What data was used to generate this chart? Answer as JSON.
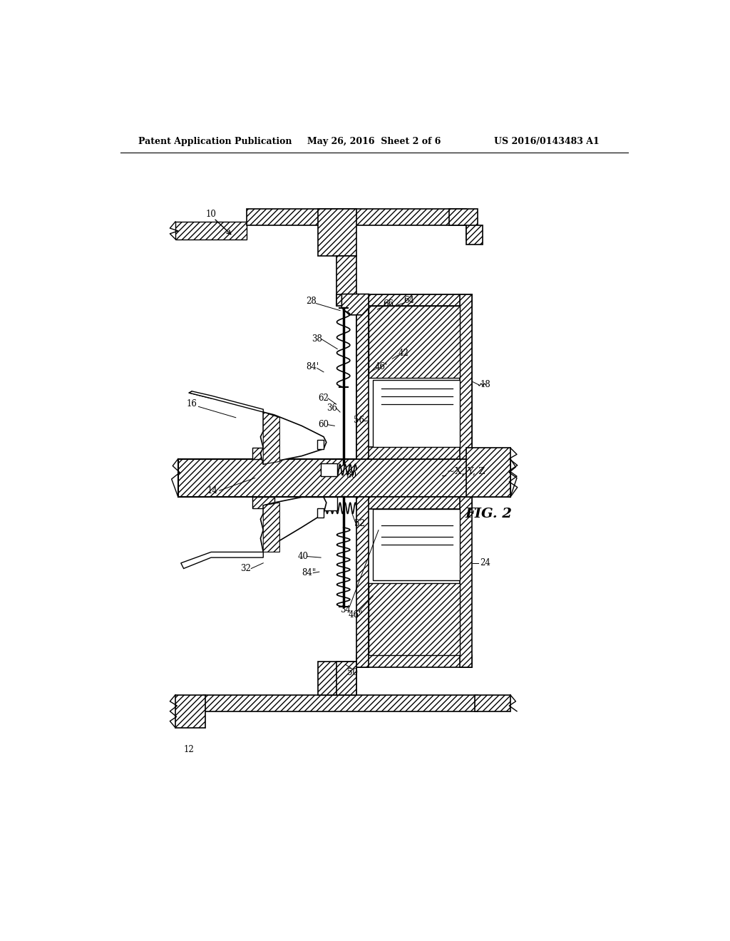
{
  "header_left": "Patent Application Publication",
  "header_center": "May 26, 2016  Sheet 2 of 6",
  "header_right": "US 2016/0143483 A1",
  "fig_label": "FIG. 2",
  "axis_label": "~X, Y, Z",
  "background": "#ffffff",
  "line_color": "#000000"
}
